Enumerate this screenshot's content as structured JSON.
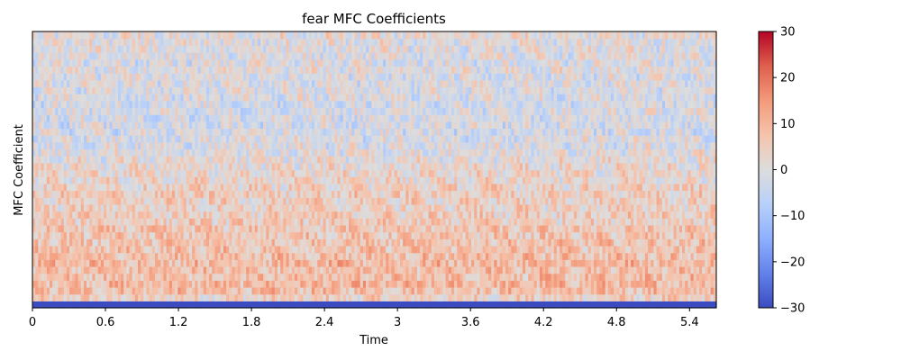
{
  "chart_data": {
    "type": "heatmap",
    "title": "fear MFC Coefficients",
    "xlabel": "Time",
    "ylabel": "MFC Coefficient",
    "x_ticks": [
      "0",
      "0.6",
      "1.2",
      "1.8",
      "2.4",
      "3",
      "3.6",
      "4.2",
      "4.8",
      "5.4"
    ],
    "x_tick_values": [
      0,
      0.6,
      1.2,
      1.8,
      2.4,
      3,
      3.6,
      4.2,
      4.8,
      5.4
    ],
    "xlim": [
      0,
      5.62
    ],
    "n_coefficients": 40,
    "n_frames": 240,
    "colorbar": {
      "vmin": -30,
      "vmax": 30,
      "ticks": [
        "30",
        "20",
        "10",
        "0",
        "−10",
        "−20",
        "−30"
      ],
      "tick_values": [
        30,
        20,
        10,
        0,
        -10,
        -20,
        -30
      ],
      "colormap": "coolwarm"
    },
    "row_profile_bottom_to_top": [
      -30,
      4,
      8,
      9,
      8,
      8,
      9,
      8,
      7,
      7,
      6,
      6,
      5,
      5,
      4,
      4,
      5,
      4,
      3,
      3,
      2,
      1,
      0,
      -1,
      -1,
      -2,
      -2,
      -2,
      -1,
      -2,
      -1,
      -1,
      -1,
      -1,
      0,
      -1,
      0,
      0,
      0,
      1
    ],
    "grid": false
  }
}
